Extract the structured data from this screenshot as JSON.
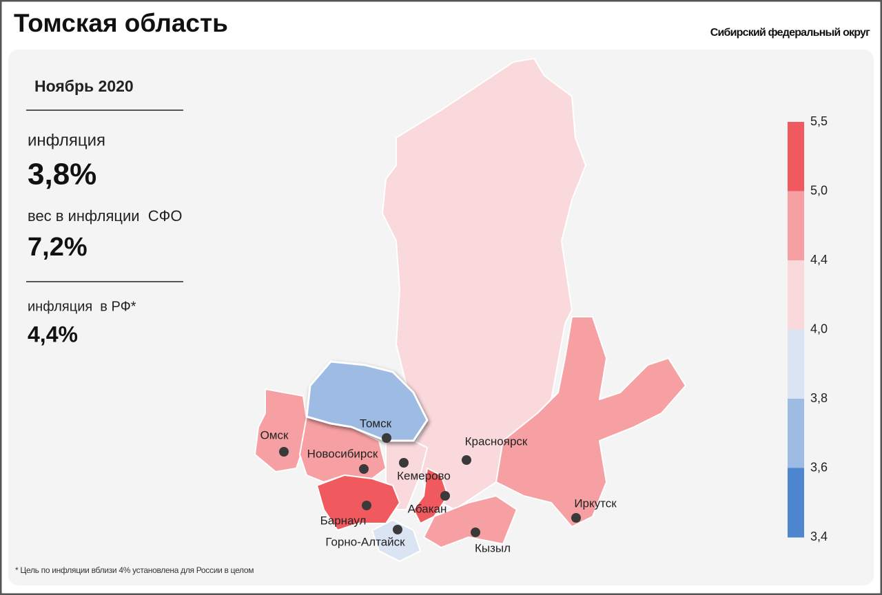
{
  "header": {
    "title": "Томская область",
    "subtitle": "Сибирский федеральный округ"
  },
  "panel": {
    "period": "Ноябрь 2020",
    "inflation_label": "инфляция",
    "inflation_value": "3,8%",
    "weight_label": "вес в инфляции  СФО",
    "weight_value": "7,2%",
    "rf_label": "инфляция  в РФ*",
    "rf_value": "4,4%"
  },
  "legend": {
    "ticks": [
      "5,5",
      "5,0",
      "4,4",
      "4,0",
      "3,8",
      "3,6",
      "3,4"
    ],
    "colors": [
      "#f05a5f",
      "#f7a0a3",
      "#fad9dc",
      "#dbe4f3",
      "#9dbbe3",
      "#4d86cf"
    ]
  },
  "cities": [
    {
      "name": "Томск"
    },
    {
      "name": "Омск"
    },
    {
      "name": "Новосибирск"
    },
    {
      "name": "Кемерово"
    },
    {
      "name": "Красноярск"
    },
    {
      "name": "Барнаул"
    },
    {
      "name": "Абакан"
    },
    {
      "name": "Горно-Алтайск"
    },
    {
      "name": "Кызыл"
    },
    {
      "name": "Иркутск"
    }
  ],
  "footnote": "* Цель по инфляции вблизи 4% установлена для России в целом"
}
